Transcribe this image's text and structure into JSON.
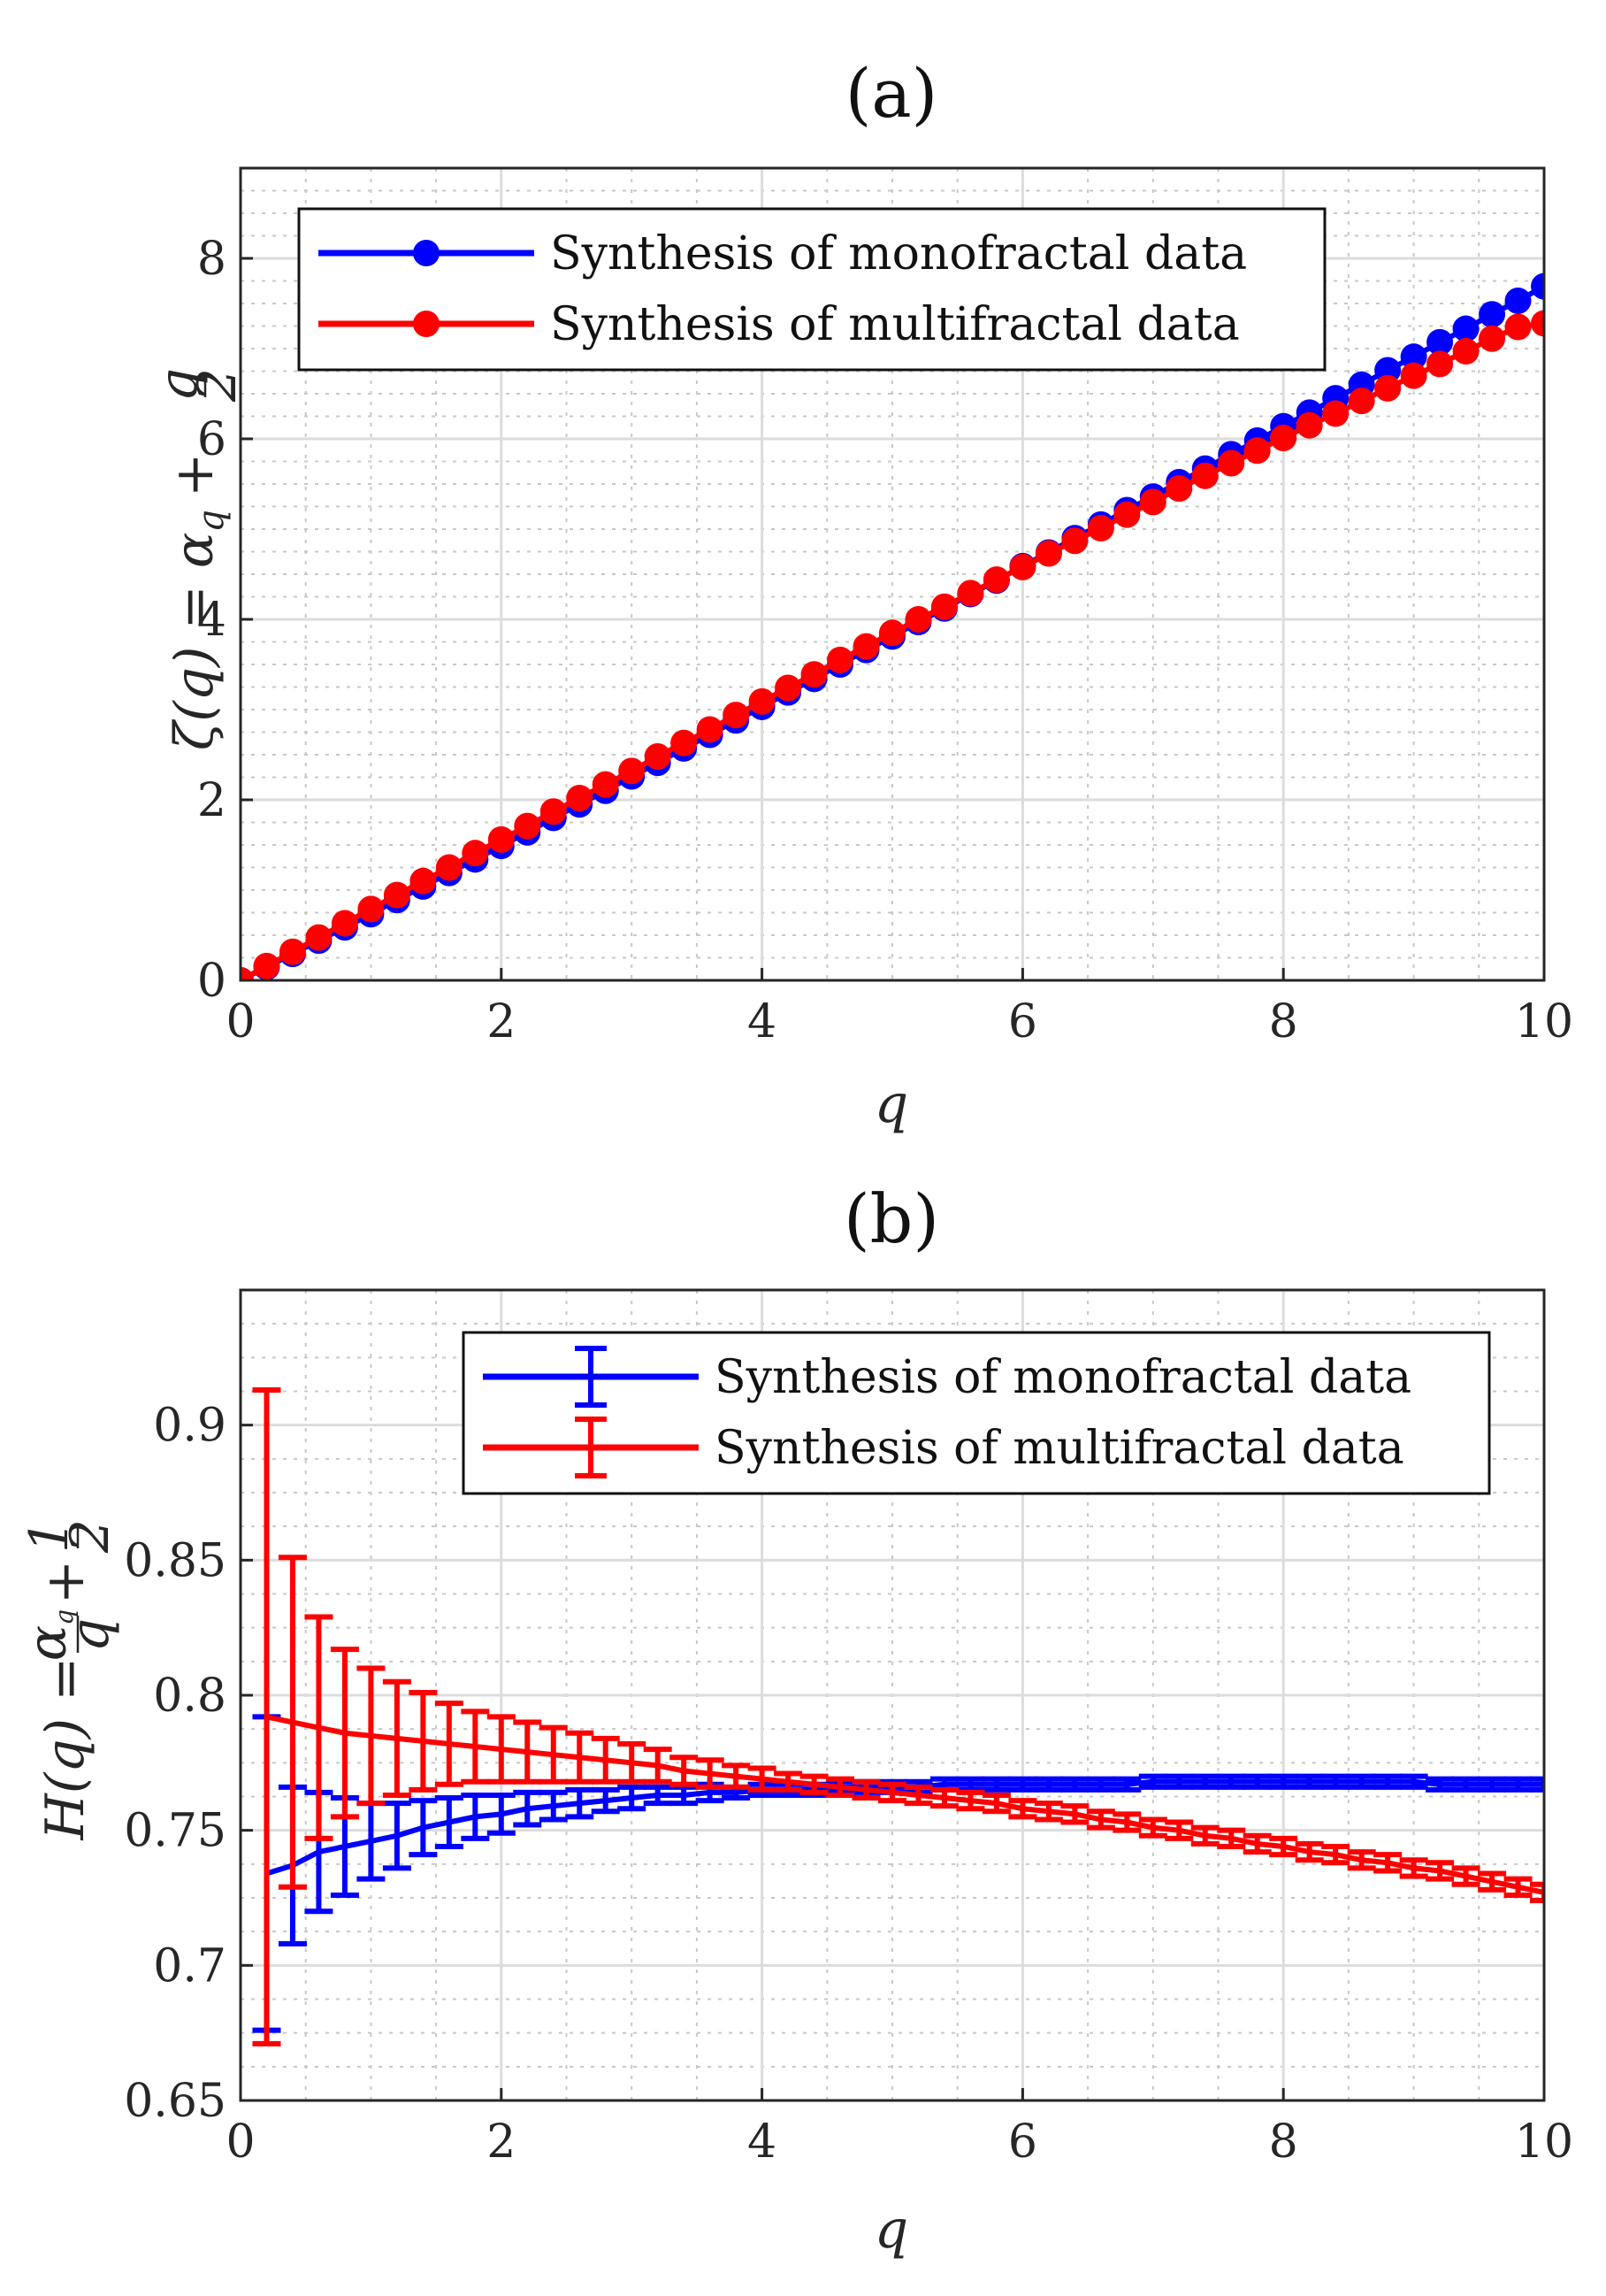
{
  "chart_data": [
    {
      "panel": "(a)",
      "type": "scatter",
      "title": "(a)",
      "xlabel": "q",
      "ylabel": "ζ(q) = α_q + q/2",
      "ylabel_main": "ζ(q) = α",
      "ylabel_sub": "q",
      "ylabel_plus": "+",
      "ylabel_frac_num": "q",
      "ylabel_frac_den": "2",
      "xlim": [
        0,
        10
      ],
      "ylim": [
        0,
        9
      ],
      "xticks": [
        "0",
        "2",
        "4",
        "6",
        "8",
        "10"
      ],
      "yticks": [
        "0",
        "2",
        "4",
        "6",
        "8"
      ],
      "grid": true,
      "legend_position": "top-left",
      "series": [
        {
          "name": "Synthesis of monofractal data",
          "color": "#0000ff",
          "marker": "circle",
          "x": [
            0,
            0.2,
            0.4,
            0.6,
            0.8,
            1,
            1.2,
            1.4,
            1.6,
            1.8,
            2,
            2.2,
            2.4,
            2.6,
            2.8,
            3,
            3.2,
            3.4,
            3.6,
            3.8,
            4,
            4.2,
            4.4,
            4.6,
            4.8,
            5,
            5.2,
            5.4,
            5.6,
            5.8,
            6,
            6.2,
            6.4,
            6.6,
            6.8,
            7,
            7.2,
            7.4,
            7.6,
            7.8,
            8,
            8.2,
            8.4,
            8.6,
            8.8,
            9,
            9.2,
            9.4,
            9.6,
            9.8,
            10
          ],
          "y": [
            0,
            0.147,
            0.293,
            0.44,
            0.587,
            0.733,
            0.89,
            1.04,
            1.19,
            1.34,
            1.49,
            1.64,
            1.8,
            1.95,
            2.1,
            2.26,
            2.41,
            2.57,
            2.72,
            2.88,
            3.03,
            3.19,
            3.34,
            3.5,
            3.66,
            3.81,
            3.97,
            4.12,
            4.28,
            4.43,
            4.59,
            4.74,
            4.9,
            5.05,
            5.21,
            5.36,
            5.52,
            5.67,
            5.83,
            5.98,
            6.14,
            6.29,
            6.45,
            6.6,
            6.76,
            6.91,
            7.07,
            7.22,
            7.38,
            7.53,
            7.69
          ]
        },
        {
          "name": "Synthesis of multifractal data",
          "color": "#ff0000",
          "marker": "circle",
          "x": [
            0,
            0.2,
            0.4,
            0.6,
            0.8,
            1,
            1.2,
            1.4,
            1.6,
            1.8,
            2,
            2.2,
            2.4,
            2.6,
            2.8,
            3,
            3.2,
            3.4,
            3.6,
            3.8,
            4,
            4.2,
            4.4,
            4.6,
            4.8,
            5,
            5.2,
            5.4,
            5.6,
            5.8,
            6,
            6.2,
            6.4,
            6.6,
            6.8,
            7,
            7.2,
            7.4,
            7.6,
            7.8,
            8,
            8.2,
            8.4,
            8.6,
            8.8,
            9,
            9.2,
            9.4,
            9.6,
            9.8,
            10
          ],
          "y": [
            0,
            0.158,
            0.316,
            0.474,
            0.632,
            0.79,
            0.945,
            1.1,
            1.25,
            1.41,
            1.56,
            1.71,
            1.87,
            2.02,
            2.17,
            2.32,
            2.48,
            2.63,
            2.78,
            2.94,
            3.09,
            3.24,
            3.39,
            3.55,
            3.7,
            3.85,
            4,
            4.14,
            4.29,
            4.44,
            4.58,
            4.73,
            4.87,
            5.01,
            5.16,
            5.3,
            5.45,
            5.59,
            5.73,
            5.87,
            6.01,
            6.15,
            6.28,
            6.42,
            6.56,
            6.7,
            6.83,
            6.97,
            7.11,
            7.24,
            7.28
          ]
        }
      ]
    },
    {
      "panel": "(b)",
      "type": "errorbar",
      "title": "(b)",
      "xlabel": "q",
      "ylabel": "H(q) = α_q/q + 1/2",
      "ylabel_main": "H(q) =",
      "ylabel_frac_num": "α",
      "ylabel_frac_num_sub": "q",
      "ylabel_frac_den": "q",
      "ylabel_plus": "+",
      "ylabel_half_num": "1",
      "ylabel_half_den": "2",
      "xlim": [
        0,
        10
      ],
      "ylim": [
        0.65,
        0.95
      ],
      "xticks": [
        "0",
        "2",
        "4",
        "6",
        "8",
        "10"
      ],
      "yticks": [
        "0.65",
        "0.7",
        "0.75",
        "0.8",
        "0.85",
        "0.9"
      ],
      "grid": true,
      "legend_position": "top-right",
      "series": [
        {
          "name": "Synthesis of monofractal data",
          "color": "#0000ff",
          "x": [
            0.2,
            0.4,
            0.6,
            0.8,
            1,
            1.2,
            1.4,
            1.6,
            1.8,
            2,
            2.2,
            2.4,
            2.6,
            2.8,
            3,
            3.2,
            3.4,
            3.6,
            3.8,
            4,
            4.2,
            4.4,
            4.6,
            4.8,
            5,
            5.2,
            5.4,
            5.6,
            5.8,
            6,
            6.2,
            6.4,
            6.6,
            6.8,
            7,
            7.2,
            7.4,
            7.6,
            7.8,
            8,
            8.2,
            8.4,
            8.6,
            8.8,
            9,
            9.2,
            9.4,
            9.6,
            9.8,
            10
          ],
          "y": [
            0.734,
            0.737,
            0.742,
            0.744,
            0.746,
            0.748,
            0.751,
            0.753,
            0.755,
            0.756,
            0.758,
            0.759,
            0.76,
            0.761,
            0.762,
            0.763,
            0.763,
            0.764,
            0.764,
            0.765,
            0.765,
            0.765,
            0.766,
            0.766,
            0.766,
            0.766,
            0.767,
            0.767,
            0.767,
            0.767,
            0.767,
            0.767,
            0.767,
            0.767,
            0.768,
            0.768,
            0.768,
            0.768,
            0.768,
            0.768,
            0.768,
            0.768,
            0.768,
            0.768,
            0.768,
            0.767,
            0.767,
            0.767,
            0.767,
            0.767
          ],
          "err": [
            0.058,
            0.029,
            0.022,
            0.018,
            0.014,
            0.012,
            0.01,
            0.009,
            0.008,
            0.007,
            0.006,
            0.005,
            0.005,
            0.004,
            0.004,
            0.003,
            0.003,
            0.003,
            0.002,
            0.002,
            0.002,
            0.002,
            0.002,
            0.002,
            0.002,
            0.002,
            0.002,
            0.002,
            0.002,
            0.002,
            0.002,
            0.002,
            0.002,
            0.002,
            0.002,
            0.002,
            0.002,
            0.002,
            0.002,
            0.002,
            0.002,
            0.002,
            0.002,
            0.002,
            0.002,
            0.002,
            0.002,
            0.002,
            0.002,
            0.002
          ]
        },
        {
          "name": "Synthesis of multifractal data",
          "color": "#ff0000",
          "x": [
            0.2,
            0.4,
            0.6,
            0.8,
            1,
            1.2,
            1.4,
            1.6,
            1.8,
            2,
            2.2,
            2.4,
            2.6,
            2.8,
            3,
            3.2,
            3.4,
            3.6,
            3.8,
            4,
            4.2,
            4.4,
            4.6,
            4.8,
            5,
            5.2,
            5.4,
            5.6,
            5.8,
            6,
            6.2,
            6.4,
            6.6,
            6.8,
            7,
            7.2,
            7.4,
            7.6,
            7.8,
            8,
            8.2,
            8.4,
            8.6,
            8.8,
            9,
            9.2,
            9.4,
            9.6,
            9.8,
            10
          ],
          "y": [
            0.792,
            0.79,
            0.788,
            0.786,
            0.785,
            0.784,
            0.783,
            0.782,
            0.781,
            0.78,
            0.779,
            0.778,
            0.777,
            0.776,
            0.775,
            0.774,
            0.772,
            0.771,
            0.77,
            0.769,
            0.768,
            0.767,
            0.766,
            0.765,
            0.764,
            0.763,
            0.762,
            0.761,
            0.76,
            0.758,
            0.757,
            0.756,
            0.754,
            0.753,
            0.751,
            0.75,
            0.748,
            0.747,
            0.745,
            0.744,
            0.742,
            0.741,
            0.739,
            0.738,
            0.736,
            0.735,
            0.733,
            0.731,
            0.729,
            0.727
          ],
          "err": [
            0.121,
            0.061,
            0.041,
            0.031,
            0.025,
            0.021,
            0.018,
            0.015,
            0.013,
            0.012,
            0.011,
            0.01,
            0.009,
            0.008,
            0.007,
            0.006,
            0.005,
            0.005,
            0.004,
            0.004,
            0.003,
            0.003,
            0.003,
            0.003,
            0.003,
            0.003,
            0.003,
            0.003,
            0.003,
            0.003,
            0.003,
            0.003,
            0.003,
            0.003,
            0.003,
            0.003,
            0.003,
            0.003,
            0.003,
            0.003,
            0.003,
            0.003,
            0.003,
            0.003,
            0.003,
            0.003,
            0.003,
            0.003,
            0.003,
            0.003
          ]
        }
      ]
    }
  ]
}
